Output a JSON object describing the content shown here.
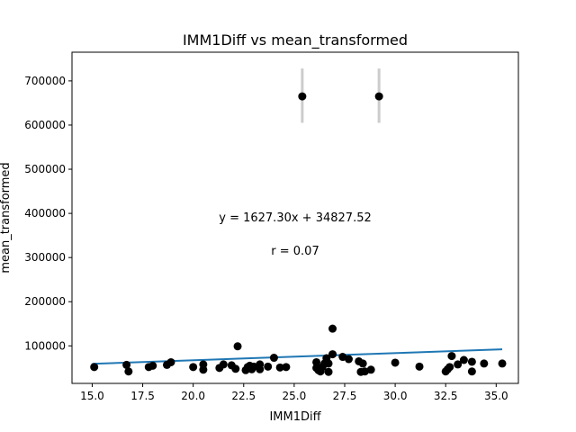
{
  "chart_data": {
    "type": "scatter",
    "title": "IMM1Diff vs mean_transformed",
    "xlabel": "IMM1Diff",
    "ylabel": "mean_transformed",
    "xlim": [
      14.0,
      36.1
    ],
    "ylim": [
      15000,
      765000
    ],
    "xticks": [
      15.0,
      17.5,
      20.0,
      22.5,
      25.0,
      27.5,
      30.0,
      32.5,
      35.0
    ],
    "xtick_labels": [
      "15.0",
      "17.5",
      "20.0",
      "22.5",
      "25.0",
      "27.5",
      "30.0",
      "32.5",
      "35.0"
    ],
    "yticks": [
      100000,
      200000,
      300000,
      400000,
      500000,
      600000,
      700000
    ],
    "ytick_labels": [
      "100000",
      "200000",
      "300000",
      "400000",
      "500000",
      "600000",
      "700000"
    ],
    "grid": false,
    "colors": {
      "points": "#000000",
      "fit_line": "#1f77b4",
      "error_bars": "#cccccc"
    },
    "annotations": [
      {
        "text": "y = 1627.30x + 34827.52"
      },
      {
        "text": "r = 0.07"
      }
    ],
    "fit": {
      "slope": 1627.3,
      "intercept": 34827.52,
      "x_range": [
        15.0,
        35.3
      ]
    },
    "error_bars": [
      {
        "x": 25.4,
        "low": 605000,
        "high": 728000
      },
      {
        "x": 29.2,
        "low": 605000,
        "high": 728000
      },
      {
        "x": 26.9,
        "low": 130000,
        "high": 148000
      }
    ],
    "points": [
      [
        15.1,
        52000
      ],
      [
        16.7,
        57000
      ],
      [
        16.8,
        42000
      ],
      [
        17.8,
        52000
      ],
      [
        18.0,
        55000
      ],
      [
        18.7,
        57000
      ],
      [
        18.9,
        63000
      ],
      [
        20.0,
        52000
      ],
      [
        20.5,
        58000
      ],
      [
        20.5,
        46000
      ],
      [
        21.3,
        50000
      ],
      [
        21.5,
        58000
      ],
      [
        21.9,
        56000
      ],
      [
        22.1,
        48000
      ],
      [
        22.2,
        99000
      ],
      [
        22.6,
        45000
      ],
      [
        22.7,
        52000
      ],
      [
        22.8,
        55000
      ],
      [
        22.9,
        47000
      ],
      [
        23.0,
        53000
      ],
      [
        23.3,
        47000
      ],
      [
        23.3,
        58000
      ],
      [
        23.7,
        53000
      ],
      [
        24.0,
        73000
      ],
      [
        24.3,
        51000
      ],
      [
        24.6,
        52000
      ],
      [
        25.4,
        665000
      ],
      [
        26.1,
        63000
      ],
      [
        26.1,
        50000
      ],
      [
        26.2,
        45000
      ],
      [
        26.3,
        42000
      ],
      [
        26.4,
        52000
      ],
      [
        26.5,
        60000
      ],
      [
        26.6,
        72000
      ],
      [
        26.7,
        41000
      ],
      [
        26.7,
        60000
      ],
      [
        26.9,
        81000
      ],
      [
        26.9,
        139000
      ],
      [
        27.4,
        75000
      ],
      [
        27.7,
        70000
      ],
      [
        28.2,
        65000
      ],
      [
        28.3,
        41000
      ],
      [
        28.4,
        60000
      ],
      [
        28.5,
        42000
      ],
      [
        28.8,
        46000
      ],
      [
        29.2,
        665000
      ],
      [
        30.0,
        62000
      ],
      [
        31.2,
        53000
      ],
      [
        32.5,
        42000
      ],
      [
        32.6,
        47000
      ],
      [
        32.7,
        52000
      ],
      [
        32.8,
        77000
      ],
      [
        33.1,
        58000
      ],
      [
        33.4,
        68000
      ],
      [
        33.8,
        64000
      ],
      [
        33.8,
        42000
      ],
      [
        34.4,
        60000
      ],
      [
        35.3,
        60000
      ]
    ]
  }
}
